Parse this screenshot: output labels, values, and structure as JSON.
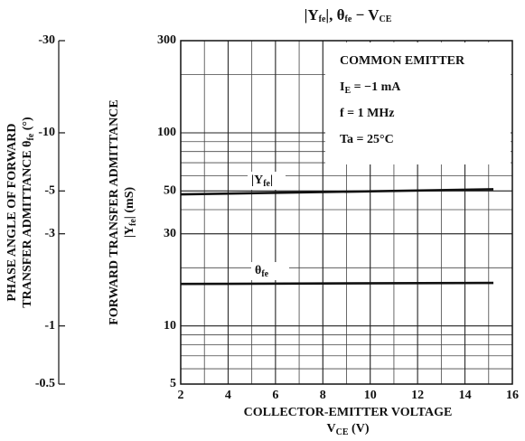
{
  "chart_data": {
    "type": "line",
    "title": [
      "|Y",
      "fe",
      "|, θ",
      "fe",
      " − V",
      "CE"
    ],
    "x_label": [
      "COLLECTOR-EMITTER VOLTAGE",
      [
        "V",
        "CE",
        "  (V)"
      ]
    ],
    "y_label": [
      "FORWARD TRANSFER ADMITTANCE",
      [
        "|Y",
        "fe",
        "|  (mS)"
      ]
    ],
    "y2_label": [
      "PHASE ANGLE OF FORWARD",
      [
        "TRANSFER ADMITTANCE  θ",
        "fe",
        "  (°)"
      ]
    ],
    "annotations": [
      "COMMON EMITTER",
      [
        "I",
        "E",
        " = −1 mA"
      ],
      "f = 1 MHz",
      "Ta = 25°C"
    ],
    "x": [
      2,
      15.2
    ],
    "series": [
      {
        "name": [
          "|Y",
          "fe",
          "|"
        ],
        "color": "#111111",
        "values": [
          48,
          51
        ]
      },
      {
        "name": [
          "θ",
          "fe"
        ],
        "color": "#111111",
        "values": [
          -1.65,
          -1.67
        ],
        "axis": "y2"
      }
    ],
    "xlim": [
      2,
      16
    ],
    "xticks": [
      2,
      4,
      6,
      8,
      10,
      12,
      14,
      16
    ],
    "ylim": [
      5,
      300
    ],
    "yticks": [
      5,
      10,
      30,
      50,
      100,
      300
    ],
    "ylog": true,
    "y2lim": [
      -0.5,
      -30
    ],
    "y2ticks": [
      -0.5,
      -1,
      -3,
      -5,
      -10,
      -30
    ],
    "y2log": true,
    "grid": true
  }
}
